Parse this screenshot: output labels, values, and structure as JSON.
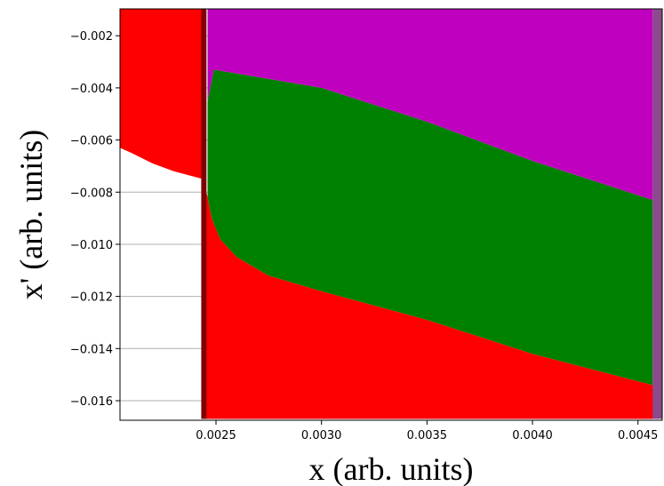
{
  "chart_data": {
    "type": "area",
    "title": "",
    "xlabel": "x (arb. units)",
    "ylabel": "x' (arb. units)",
    "xlim": [
      0.002045,
      0.004615
    ],
    "ylim": [
      -0.01675,
      -0.00097
    ],
    "x_ticks": [
      0.0025,
      0.003,
      0.0035,
      0.004,
      0.0045
    ],
    "x_tick_labels": [
      "0.0025",
      "0.0030",
      "0.0035",
      "0.0040",
      "0.0045"
    ],
    "y_ticks": [
      -0.002,
      -0.004,
      -0.006,
      -0.008,
      -0.01,
      -0.012,
      -0.014,
      -0.016
    ],
    "y_tick_labels": [
      "−0.002",
      "−0.004",
      "−0.006",
      "−0.008",
      "−0.010",
      "−0.012",
      "−0.014",
      "−0.016"
    ],
    "grid": "horizontal",
    "colors": {
      "red": "#ff0000",
      "green": "#008000",
      "magenta": "#bf00bf",
      "dark_red": "#800000",
      "violet": "#8b4a8b"
    },
    "regions": [
      {
        "color": "red",
        "points": [
          [
            0.002045,
            -0.00097
          ],
          [
            0.00244,
            -0.00097
          ],
          [
            0.00244,
            -0.0167
          ],
          [
            0.004615,
            -0.0167
          ],
          [
            0.004615,
            -0.0157
          ],
          [
            0.00457,
            -0.0154
          ],
          [
            0.004,
            -0.0142
          ],
          [
            0.0035,
            -0.0129
          ],
          [
            0.003,
            -0.0118
          ],
          [
            0.00275,
            -0.0112
          ],
          [
            0.0026,
            -0.0105
          ],
          [
            0.00252,
            -0.0098
          ],
          [
            0.00248,
            -0.009
          ],
          [
            0.00246,
            -0.0082
          ],
          [
            0.00244,
            -0.0075
          ],
          [
            0.0023,
            -0.0072
          ],
          [
            0.0022,
            -0.0069
          ],
          [
            0.0021,
            -0.0065
          ],
          [
            0.002045,
            -0.0063
          ]
        ]
      },
      {
        "color": "green",
        "points": [
          [
            0.00246,
            -0.0082
          ],
          [
            0.00246,
            -0.0045
          ],
          [
            0.00249,
            -0.0033
          ],
          [
            0.003,
            -0.004
          ],
          [
            0.0035,
            -0.0053
          ],
          [
            0.004,
            -0.0068
          ],
          [
            0.00457,
            -0.0083
          ],
          [
            0.00457,
            -0.0154
          ],
          [
            0.004,
            -0.0142
          ],
          [
            0.0035,
            -0.0129
          ],
          [
            0.003,
            -0.0118
          ],
          [
            0.00275,
            -0.0112
          ],
          [
            0.0026,
            -0.0105
          ],
          [
            0.00252,
            -0.0098
          ],
          [
            0.00248,
            -0.009
          ]
        ]
      },
      {
        "color": "magenta",
        "points": [
          [
            0.00246,
            -0.00097
          ],
          [
            0.00457,
            -0.00097
          ],
          [
            0.00457,
            -0.0083
          ],
          [
            0.004,
            -0.0068
          ],
          [
            0.0035,
            -0.0053
          ],
          [
            0.003,
            -0.004
          ],
          [
            0.00249,
            -0.0033
          ],
          [
            0.00246,
            -0.0045
          ]
        ]
      },
      {
        "color": "dark_red",
        "points": [
          [
            0.00243,
            -0.00097
          ],
          [
            0.002455,
            -0.00097
          ],
          [
            0.002455,
            -0.0167
          ],
          [
            0.00243,
            -0.0167
          ]
        ]
      },
      {
        "color": "violet",
        "points": [
          [
            0.00457,
            -0.00097
          ],
          [
            0.004615,
            -0.00097
          ],
          [
            0.004615,
            -0.0167
          ],
          [
            0.00457,
            -0.0167
          ]
        ]
      }
    ]
  }
}
